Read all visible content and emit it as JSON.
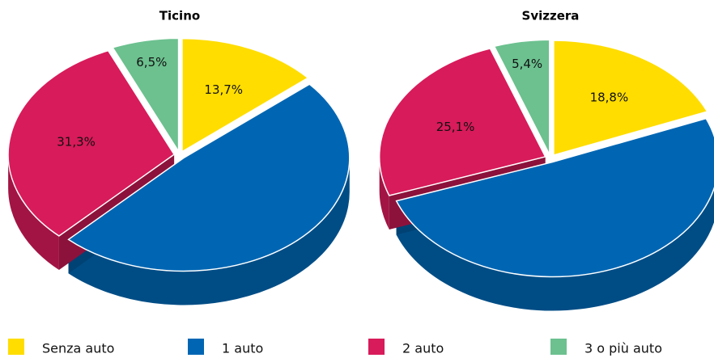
{
  "chart_data": [
    {
      "type": "pie",
      "title": "Ticino",
      "values": [
        13.7,
        48.5,
        31.3,
        6.5
      ],
      "value_labels": [
        "13,7%",
        null,
        "31,3%",
        "6,5%"
      ]
    },
    {
      "type": "pie",
      "title": "Svizzera",
      "values": [
        18.8,
        50.7,
        25.1,
        5.4
      ],
      "value_labels": [
        "18,8%",
        null,
        "25,1%",
        "5,4%"
      ]
    }
  ],
  "legend": {
    "categories": [
      "Senza auto",
      "1 auto",
      "2 auto",
      "3 o più auto"
    ],
    "colors": [
      "#ffdd00",
      "#0066b3",
      "#d81b5a",
      "#6cc18f"
    ]
  }
}
